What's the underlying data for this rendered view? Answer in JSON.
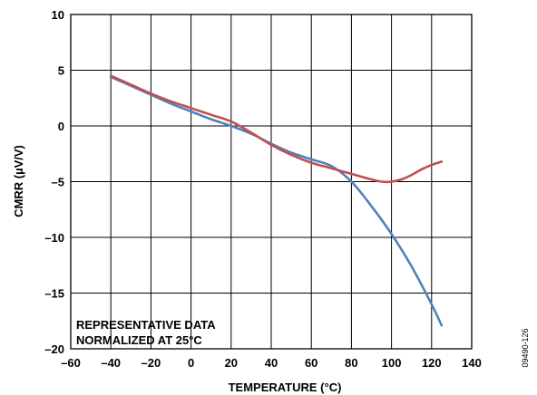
{
  "chart_data": {
    "type": "line",
    "xlabel": "TEMPERATURE (°C)",
    "ylabel": "CMRR (µV/V)",
    "xlim": [
      -60,
      140
    ],
    "ylim": [
      -20,
      10
    ],
    "xticks": [
      -60,
      -40,
      -20,
      0,
      20,
      40,
      60,
      80,
      100,
      120,
      140
    ],
    "yticks": [
      10,
      5,
      0,
      -5,
      -10,
      -15,
      -20
    ],
    "xtick_labels": [
      "–60",
      "–40",
      "–20",
      "0",
      "20",
      "40",
      "60",
      "80",
      "100",
      "120",
      "140"
    ],
    "ytick_labels": [
      "10",
      "5",
      "0",
      "–5",
      "–10",
      "–15",
      "–20"
    ],
    "grid": true,
    "annotation_lines": [
      "REPRESENTATIVE DATA",
      "NORMALIZED AT 25°C"
    ],
    "figure_id": "09490-126",
    "series": [
      {
        "color": "#4f81bd",
        "x": [
          -40,
          -30,
          -20,
          -10,
          0,
          10,
          20,
          30,
          40,
          50,
          60,
          70,
          80,
          90,
          100,
          110,
          120,
          125
        ],
        "y": [
          4.4,
          3.6,
          2.8,
          2.0,
          1.3,
          0.6,
          0.0,
          -0.7,
          -1.6,
          -2.4,
          -3.0,
          -3.6,
          -5.0,
          -7.2,
          -9.7,
          -12.6,
          -16.0,
          -17.9
        ]
      },
      {
        "color": "#c0504d",
        "x": [
          -40,
          -30,
          -20,
          -10,
          0,
          10,
          20,
          30,
          40,
          50,
          60,
          70,
          80,
          90,
          95,
          100,
          105,
          110,
          115,
          120,
          125
        ],
        "y": [
          4.5,
          3.7,
          2.9,
          2.2,
          1.6,
          1.0,
          0.4,
          -0.6,
          -1.7,
          -2.6,
          -3.3,
          -3.8,
          -4.3,
          -4.8,
          -5.0,
          -5.0,
          -4.8,
          -4.4,
          -3.9,
          -3.5,
          -3.2
        ]
      }
    ]
  }
}
